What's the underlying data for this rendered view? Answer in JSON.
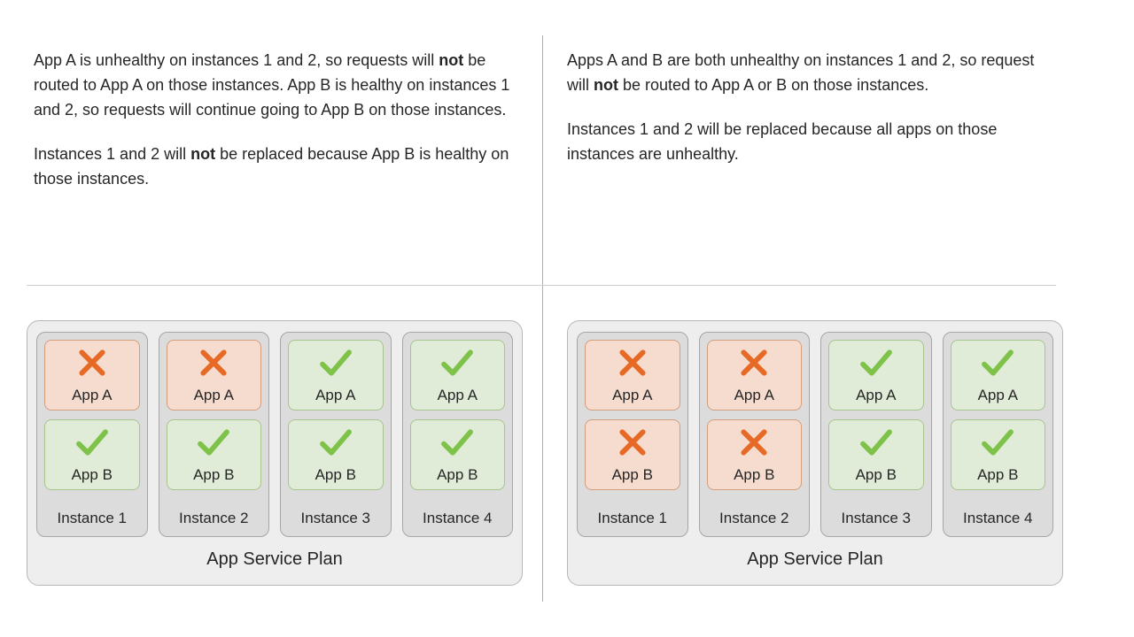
{
  "colors": {
    "page_bg": "#ffffff",
    "divider": "#b0b0b0",
    "hr": "#cfcfcf",
    "plan_bg": "#eeeeee",
    "plan_border": "#b7b7b7",
    "instance_bg": "#dcdcdc",
    "instance_border": "#a6a6a6",
    "app_unhealthy_bg": "#f6dccf",
    "app_unhealthy_border": "#d39e7d",
    "app_healthy_bg": "#e0ecd7",
    "app_healthy_border": "#a8c48e",
    "check_color": "#7fc24a",
    "x_color": "#e66a26",
    "text": "#262626"
  },
  "typography": {
    "body_fontsize": 18,
    "label_fontsize": 17,
    "plan_fontsize": 20
  },
  "icons": {
    "healthy": "check",
    "unhealthy": "x"
  },
  "labels": {
    "plan": "App Service Plan",
    "app_a": "App A",
    "app_b": "App B",
    "instance_prefix": "Instance"
  },
  "left_desc_html": "<p>App A is unhealthy on instances 1 and 2, so requests will <b>not</b> be routed to App A on those instances. App B is healthy on instances 1 and 2, so requests will continue going to App B on those instances.</p><p>Instances 1 and 2 will <b>not</b> be replaced because App B is healthy on those instances.</p>",
  "right_desc_html": "<p>Apps A and B are both unhealthy on instances 1 and 2, so request will <b>not</b> be routed to App A or B on those instances.</p><p>Instances 1 and 2 will be replaced because all apps on those instances are unhealthy.</p>",
  "scenarios": [
    {
      "side": "left",
      "instances": [
        {
          "n": 1,
          "apps": [
            {
              "name": "app_a",
              "status": "unhealthy"
            },
            {
              "name": "app_b",
              "status": "healthy"
            }
          ]
        },
        {
          "n": 2,
          "apps": [
            {
              "name": "app_a",
              "status": "unhealthy"
            },
            {
              "name": "app_b",
              "status": "healthy"
            }
          ]
        },
        {
          "n": 3,
          "apps": [
            {
              "name": "app_a",
              "status": "healthy"
            },
            {
              "name": "app_b",
              "status": "healthy"
            }
          ]
        },
        {
          "n": 4,
          "apps": [
            {
              "name": "app_a",
              "status": "healthy"
            },
            {
              "name": "app_b",
              "status": "healthy"
            }
          ]
        }
      ]
    },
    {
      "side": "right",
      "instances": [
        {
          "n": 1,
          "apps": [
            {
              "name": "app_a",
              "status": "unhealthy"
            },
            {
              "name": "app_b",
              "status": "unhealthy"
            }
          ]
        },
        {
          "n": 2,
          "apps": [
            {
              "name": "app_a",
              "status": "unhealthy"
            },
            {
              "name": "app_b",
              "status": "unhealthy"
            }
          ]
        },
        {
          "n": 3,
          "apps": [
            {
              "name": "app_a",
              "status": "healthy"
            },
            {
              "name": "app_b",
              "status": "healthy"
            }
          ]
        },
        {
          "n": 4,
          "apps": [
            {
              "name": "app_a",
              "status": "healthy"
            },
            {
              "name": "app_b",
              "status": "healthy"
            }
          ]
        }
      ]
    }
  ]
}
